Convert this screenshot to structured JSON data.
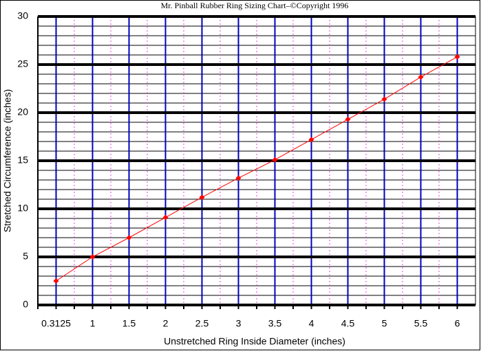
{
  "chart_data": {
    "type": "line",
    "title": "Mr. Pinball Rubber Ring Sizing Chart–©Copyright 1996",
    "x_label": "Unstretched Ring Inside Diameter (inches)",
    "y_label": "Stretched Circumference (inches)",
    "categories": [
      "0.3125",
      "1",
      "1.5",
      "2",
      "2.5",
      "3",
      "3.5",
      "4",
      "4.5",
      "5",
      "5.5",
      "6"
    ],
    "series": [
      {
        "name": "Stretched Circumference",
        "color": "#ff0000",
        "values": [
          2.5,
          5.0,
          7.0,
          9.1,
          11.2,
          13.2,
          15.1,
          17.2,
          19.3,
          21.4,
          23.7,
          25.8
        ]
      }
    ],
    "ylim": [
      0,
      30
    ],
    "yticks": [
      0,
      5,
      10,
      15,
      20,
      25,
      30
    ],
    "grid": true,
    "legend": false
  }
}
